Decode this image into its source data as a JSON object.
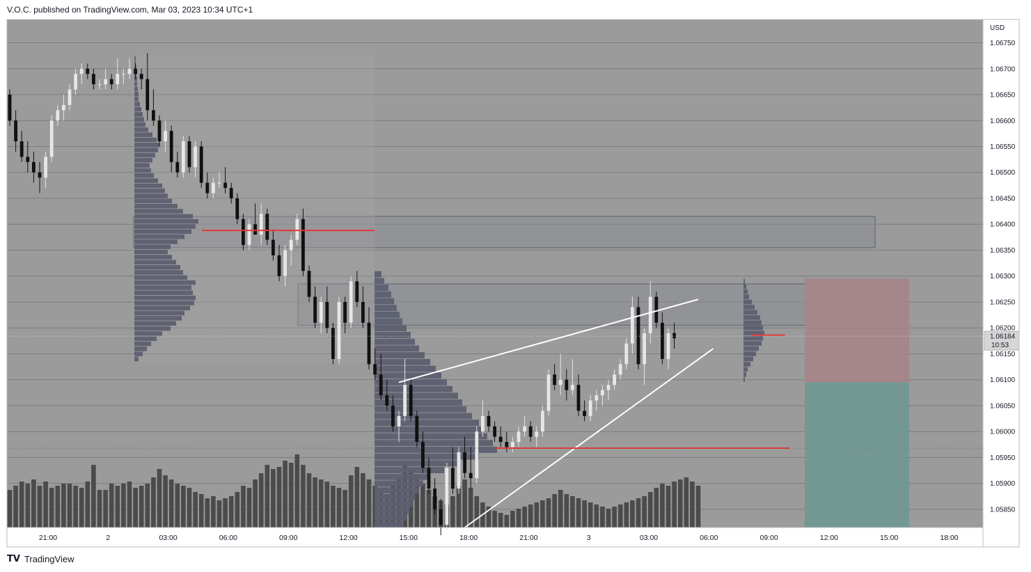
{
  "header": {
    "published_text": "V.O.C. published on TradingView.com, Mar 03, 2023 10:34 UTC+1"
  },
  "footer": {
    "brand_logo": "TV",
    "brand_name": "TradingView"
  },
  "colors": {
    "plot_background": "#9b9b9b",
    "up_candle": "#e6e6e6",
    "down_candle": "#111111",
    "volume_bar": "#4b4b4b",
    "volume_profile": "#5d5f70",
    "poc_line": "#e53935",
    "trendline": "#ffffff",
    "zone_fill": "#8b8d93",
    "stop_zone": "#a6858a",
    "target_zone": "#6f9894"
  },
  "chart_data": {
    "type": "candlestick",
    "symbol_currency": "USD",
    "y_axis": {
      "range": [
        1.05815,
        1.06795
      ],
      "ticks": [
        "1.06750",
        "1.06700",
        "1.06650",
        "1.06600",
        "1.06550",
        "1.06500",
        "1.06450",
        "1.06400",
        "1.06350",
        "1.06300",
        "1.06250",
        "1.06200",
        "1.06150",
        "1.06100",
        "1.06050",
        "1.06000",
        "1.05950",
        "1.05900",
        "1.05850"
      ]
    },
    "x_axis": {
      "ticks": [
        "21:00",
        "2",
        "03:00",
        "06:00",
        "09:00",
        "12:00",
        "15:00",
        "18:00",
        "21:00",
        "3",
        "03:00",
        "06:00",
        "09:00",
        "12:00",
        "15:00",
        "18:00"
      ]
    },
    "last_price": {
      "value": "1.06184",
      "countdown": "10:53"
    },
    "ohlc": [
      [
        1.0665,
        1.0666,
        1.0659,
        1.066
      ],
      [
        1.066,
        1.0662,
        1.0654,
        1.0656
      ],
      [
        1.0656,
        1.0658,
        1.0652,
        1.0653
      ],
      [
        1.0653,
        1.0656,
        1.065,
        1.0652
      ],
      [
        1.0652,
        1.0654,
        1.0648,
        1.065
      ],
      [
        1.065,
        1.0652,
        1.0646,
        1.0649
      ],
      [
        1.0649,
        1.0654,
        1.0647,
        1.0653
      ],
      [
        1.0653,
        1.0661,
        1.0652,
        1.066
      ],
      [
        1.066,
        1.0663,
        1.0659,
        1.0662
      ],
      [
        1.0662,
        1.0665,
        1.066,
        1.0663
      ],
      [
        1.0663,
        1.0667,
        1.0662,
        1.0666
      ],
      [
        1.0666,
        1.067,
        1.0665,
        1.0669
      ],
      [
        1.0669,
        1.0671,
        1.0667,
        1.067
      ],
      [
        1.067,
        1.0671,
        1.0668,
        1.0669
      ],
      [
        1.0669,
        1.067,
        1.0666,
        1.0667
      ],
      [
        1.0667,
        1.0668,
        1.0666,
        1.0667
      ],
      [
        1.0667,
        1.067,
        1.0666,
        1.0668
      ],
      [
        1.0668,
        1.0669,
        1.0666,
        1.0667
      ],
      [
        1.0667,
        1.0672,
        1.0666,
        1.0669
      ],
      [
        1.0669,
        1.067,
        1.0667,
        1.0669
      ],
      [
        1.0669,
        1.0672,
        1.0668,
        1.067
      ],
      [
        1.067,
        1.0671,
        1.0668,
        1.0669
      ],
      [
        1.0669,
        1.067,
        1.0666,
        1.0668
      ],
      [
        1.0668,
        1.0673,
        1.066,
        1.0662
      ],
      [
        1.0662,
        1.0666,
        1.0659,
        1.066
      ],
      [
        1.066,
        1.0661,
        1.0655,
        1.0656
      ],
      [
        1.0656,
        1.066,
        1.0654,
        1.0658
      ],
      [
        1.0658,
        1.0659,
        1.065,
        1.0652
      ],
      [
        1.0652,
        1.0654,
        1.0649,
        1.065
      ],
      [
        1.065,
        1.0657,
        1.0649,
        1.0656
      ],
      [
        1.0656,
        1.0657,
        1.065,
        1.0651
      ],
      [
        1.0651,
        1.0656,
        1.0649,
        1.0655
      ],
      [
        1.0655,
        1.0656,
        1.0647,
        1.0648
      ],
      [
        1.0648,
        1.065,
        1.0645,
        1.0646
      ],
      [
        1.0646,
        1.0649,
        1.0645,
        1.0648
      ],
      [
        1.0648,
        1.065,
        1.0647,
        1.0648
      ],
      [
        1.0648,
        1.0651,
        1.0646,
        1.0647
      ],
      [
        1.0647,
        1.0648,
        1.0644,
        1.0645
      ],
      [
        1.0645,
        1.0646,
        1.064,
        1.0641
      ],
      [
        1.0641,
        1.0642,
        1.0635,
        1.0636
      ],
      [
        1.0636,
        1.0641,
        1.0635,
        1.064
      ],
      [
        1.064,
        1.0644,
        1.0638,
        1.0638
      ],
      [
        1.0638,
        1.0644,
        1.0636,
        1.0642
      ],
      [
        1.0642,
        1.0643,
        1.0636,
        1.0637
      ],
      [
        1.0637,
        1.0639,
        1.0633,
        1.0634
      ],
      [
        1.0634,
        1.0636,
        1.0629,
        1.063
      ],
      [
        1.063,
        1.0636,
        1.0628,
        1.0635
      ],
      [
        1.0635,
        1.0638,
        1.0632,
        1.0637
      ],
      [
        1.0637,
        1.0642,
        1.0636,
        1.0641
      ],
      [
        1.0641,
        1.0643,
        1.063,
        1.0631
      ],
      [
        1.0631,
        1.0632,
        1.0625,
        1.0626
      ],
      [
        1.0626,
        1.0628,
        1.062,
        1.0621
      ],
      [
        1.0621,
        1.0626,
        1.0619,
        1.0625
      ],
      [
        1.0625,
        1.0628,
        1.0619,
        1.062
      ],
      [
        1.062,
        1.0621,
        1.0613,
        1.0614
      ],
      [
        1.0614,
        1.0626,
        1.0613,
        1.0625
      ],
      [
        1.0625,
        1.0626,
        1.0619,
        1.0621
      ],
      [
        1.0621,
        1.063,
        1.062,
        1.0629
      ],
      [
        1.0629,
        1.0631,
        1.0624,
        1.0625
      ],
      [
        1.0625,
        1.0628,
        1.062,
        1.0621
      ],
      [
        1.0621,
        1.0624,
        1.0612,
        1.0613
      ],
      [
        1.0613,
        1.0616,
        1.061,
        1.0611
      ],
      [
        1.0611,
        1.0615,
        1.0606,
        1.0607
      ],
      [
        1.0607,
        1.061,
        1.0604,
        1.0605
      ],
      [
        1.0605,
        1.0607,
        1.06,
        1.0601
      ],
      [
        1.0601,
        1.0604,
        1.0598,
        1.0603
      ],
      [
        1.0603,
        1.0614,
        1.0602,
        1.0609
      ],
      [
        1.0609,
        1.061,
        1.0602,
        1.0603
      ],
      [
        1.0603,
        1.0604,
        1.0597,
        1.0598
      ],
      [
        1.0598,
        1.06,
        1.0592,
        1.0593
      ],
      [
        1.0593,
        1.0595,
        1.0588,
        1.0589
      ],
      [
        1.0589,
        1.0591,
        1.0584,
        1.0585
      ],
      [
        1.0585,
        1.0587,
        1.058,
        1.0582
      ],
      [
        1.0582,
        1.0594,
        1.0581,
        1.0593
      ],
      [
        1.0593,
        1.0597,
        1.0588,
        1.0589
      ],
      [
        1.0589,
        1.0597,
        1.0588,
        1.0596
      ],
      [
        1.0596,
        1.0599,
        1.0591,
        1.0592
      ],
      [
        1.0592,
        1.0597,
        1.0589,
        1.0591
      ],
      [
        1.0591,
        1.0601,
        1.059,
        1.06
      ],
      [
        1.06,
        1.0606,
        1.0599,
        1.0603
      ],
      [
        1.0603,
        1.0604,
        1.06,
        1.0601
      ],
      [
        1.0601,
        1.0602,
        1.0598,
        1.0599
      ],
      [
        1.0599,
        1.0601,
        1.0597,
        1.0598
      ],
      [
        1.0598,
        1.06,
        1.0596,
        1.0597
      ],
      [
        1.0597,
        1.0599,
        1.0596,
        1.0598
      ],
      [
        1.0598,
        1.0601,
        1.0597,
        1.06
      ],
      [
        1.06,
        1.0603,
        1.0599,
        1.0601
      ],
      [
        1.0601,
        1.0602,
        1.0598,
        1.0599
      ],
      [
        1.0599,
        1.0601,
        1.0597,
        1.06
      ],
      [
        1.06,
        1.0605,
        1.0599,
        1.0604
      ],
      [
        1.0604,
        1.0612,
        1.0603,
        1.0611
      ],
      [
        1.0611,
        1.0613,
        1.0608,
        1.0609
      ],
      [
        1.0609,
        1.0615,
        1.0607,
        1.061
      ],
      [
        1.061,
        1.0612,
        1.0606,
        1.0608
      ],
      [
        1.0608,
        1.0614,
        1.0607,
        1.0609
      ],
      [
        1.0609,
        1.0611,
        1.0603,
        1.0604
      ],
      [
        1.0604,
        1.0606,
        1.0602,
        1.0603
      ],
      [
        1.0603,
        1.0607,
        1.0602,
        1.0606
      ],
      [
        1.0606,
        1.0608,
        1.0604,
        1.0607
      ],
      [
        1.0607,
        1.0609,
        1.0605,
        1.0608
      ],
      [
        1.0608,
        1.061,
        1.0606,
        1.0609
      ],
      [
        1.0609,
        1.0612,
        1.0608,
        1.0611
      ],
      [
        1.0611,
        1.0614,
        1.061,
        1.0613
      ],
      [
        1.0613,
        1.0618,
        1.0612,
        1.0617
      ],
      [
        1.0617,
        1.0626,
        1.0615,
        1.0624
      ],
      [
        1.0624,
        1.0626,
        1.0612,
        1.0613
      ],
      [
        1.0613,
        1.062,
        1.0609,
        1.0619
      ],
      [
        1.0619,
        1.0629,
        1.0617,
        1.0626
      ],
      [
        1.0626,
        1.0627,
        1.062,
        1.0621
      ],
      [
        1.0621,
        1.0623,
        1.0613,
        1.0614
      ],
      [
        1.0614,
        1.062,
        1.0612,
        1.0619
      ],
      [
        1.0619,
        1.0621,
        1.0616,
        1.0618
      ]
    ],
    "volume": [
      36,
      40,
      44,
      42,
      46,
      40,
      44,
      38,
      40,
      42,
      42,
      40,
      38,
      44,
      60,
      36,
      36,
      42,
      40,
      42,
      44,
      38,
      40,
      42,
      48,
      56,
      50,
      46,
      42,
      40,
      38,
      34,
      32,
      28,
      30,
      26,
      28,
      30,
      34,
      40,
      38,
      46,
      52,
      60,
      56,
      58,
      64,
      62,
      70,
      60,
      52,
      48,
      46,
      44,
      40,
      38,
      36,
      50,
      58,
      52,
      46,
      40,
      36,
      32,
      40,
      48,
      62,
      56,
      50,
      42,
      36,
      30,
      26,
      22,
      30,
      40,
      46,
      38,
      30,
      24,
      20,
      16,
      14,
      12,
      16,
      18,
      20,
      22,
      24,
      26,
      28,
      32,
      36,
      32,
      30,
      28,
      26,
      24,
      22,
      20,
      18,
      20,
      22,
      24,
      26,
      28,
      30,
      34,
      38,
      42,
      40,
      44,
      46,
      48,
      44,
      40
    ],
    "profiles": [
      {
        "bins_from": 1.06135,
        "bins_to": 1.06725,
        "poc": 1.06387,
        "lengths": [
          6,
          12,
          18,
          24,
          32,
          40,
          52,
          60,
          68,
          72,
          80,
          86,
          88,
          84,
          82,
          88,
          76,
          70,
          66,
          60,
          54,
          48,
          52,
          62,
          72,
          82,
          88,
          92,
          84,
          70,
          62,
          54,
          48,
          44,
          40,
          34,
          28,
          24,
          22,
          26,
          30,
          34,
          36,
          32,
          26,
          20,
          16,
          14,
          12,
          10,
          8,
          6,
          6,
          5,
          4,
          4,
          3,
          3,
          2,
          2
        ]
      },
      {
        "bins_from": 1.05815,
        "bins_to": 1.0631,
        "poc": 1.05965,
        "lengths": [
          42,
          46,
          50,
          54,
          58,
          64,
          70,
          80,
          100,
          120,
          150,
          176,
          170,
          162,
          156,
          150,
          140,
          132,
          126,
          120,
          112,
          104,
          96,
          88,
          80,
          72,
          64,
          58,
          52,
          46,
          40,
          36,
          32,
          28,
          24,
          20,
          14,
          10
        ]
      },
      {
        "bins_from": 1.06095,
        "bins_to": 1.06295,
        "poc": 1.06185,
        "lengths": [
          2,
          4,
          6,
          10,
          14,
          18,
          22,
          26,
          28,
          30,
          28,
          26,
          24,
          20,
          16,
          12,
          8,
          6,
          4,
          2
        ]
      }
    ],
    "annotations": {
      "zones": [
        {
          "top": 1.06415,
          "bottom": 1.06355
        },
        {
          "top": 1.06285,
          "bottom": 1.06205
        }
      ],
      "poc_lines": [
        {
          "price": 1.06388
        },
        {
          "price": 1.05968
        },
        {
          "price": 1.06186
        }
      ],
      "trendlines": [
        {
          "from": [
            65,
            1.06095
          ],
          "to": [
            115,
            1.06255
          ]
        },
        {
          "from": [
            76,
            1.05815
          ],
          "to": [
            117.5,
            1.0616
          ]
        }
      ],
      "position": {
        "stop_top": 1.06295,
        "entry": 1.06095,
        "target_bottom": 1.05815
      }
    }
  }
}
